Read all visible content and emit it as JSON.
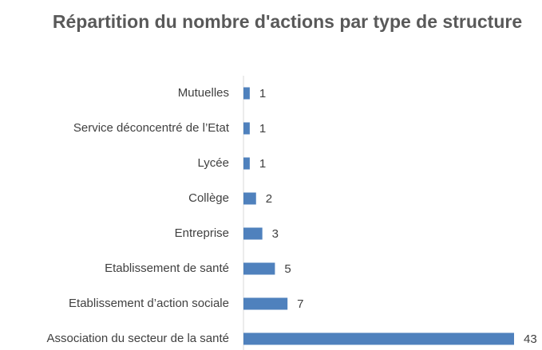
{
  "chart_data": {
    "type": "bar",
    "orientation": "horizontal",
    "title": "Répartition du nombre d'actions par type de structure",
    "categories": [
      "Mutuelles",
      "Service déconcentré de l’Etat",
      "Lycée",
      "Collège",
      "Entreprise",
      "Etablissement de santé",
      "Etablissement d’action sociale",
      "Association du secteur de la santé"
    ],
    "values": [
      1,
      1,
      1,
      2,
      3,
      5,
      7,
      43
    ],
    "color": "#4f81bd"
  }
}
